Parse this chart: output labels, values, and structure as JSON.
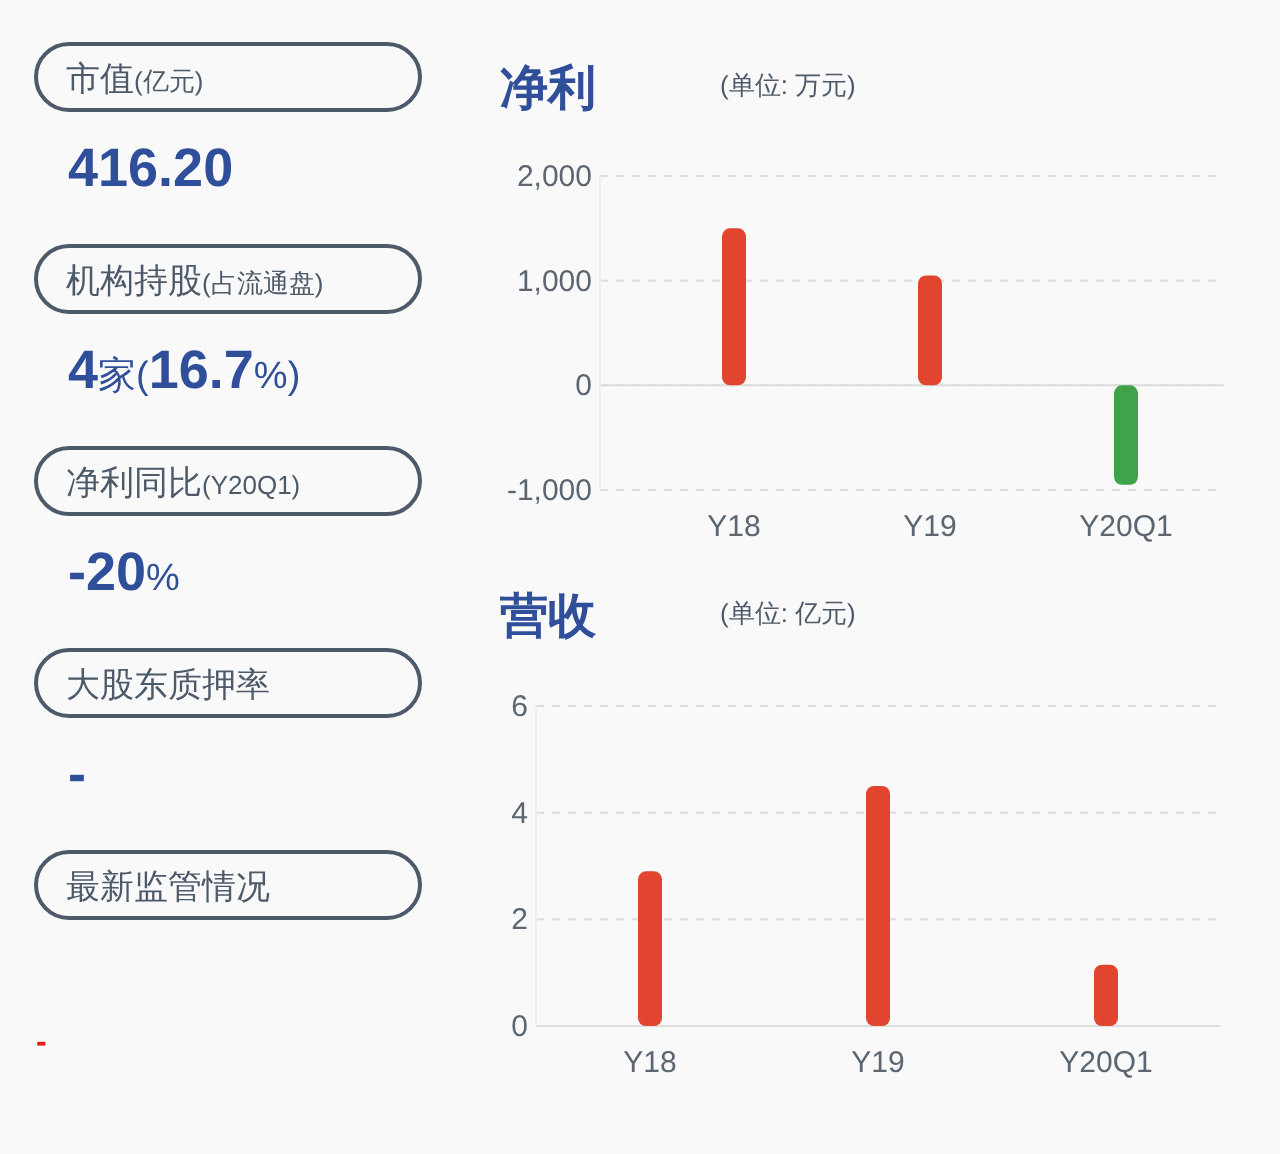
{
  "chart_data": [
    {
      "type": "other",
      "annotations": [
        "市值(亿元)",
        "416.20",
        "机构持股(占流通盘)",
        "4家(16.7%)",
        "净利同比(Y20Q1)",
        "-20%",
        "大股东质押率",
        "-",
        "最新监管情况",
        "-"
      ]
    },
    {
      "type": "bar",
      "title": "净利",
      "subtitle": "(单位: 万元)",
      "categories": [
        "Y18",
        "Y19",
        "Y20Q1"
      ],
      "values": [
        1500,
        1050,
        -950
      ],
      "colors": [
        "#e2452f",
        "#e2452f",
        "#3fa34a"
      ],
      "ylim": [
        -1000,
        2000
      ],
      "yticks": [
        {
          "value": -1000,
          "label": "-1,000"
        },
        0,
        {
          "value": 1000,
          "label": "1,000"
        },
        {
          "value": 2000,
          "label": "2,000"
        }
      ],
      "grid": "y"
    },
    {
      "type": "bar",
      "title": "营收",
      "subtitle": "(单位: 亿元)",
      "categories": [
        "Y18",
        "Y19",
        "Y20Q1"
      ],
      "values": [
        2.9,
        4.5,
        1.15
      ],
      "colors": [
        "#e2452f",
        "#e2452f",
        "#e2452f"
      ],
      "ylim": [
        0,
        6
      ],
      "yticks": [
        0,
        2,
        4,
        6
      ],
      "grid": "y"
    }
  ]
}
